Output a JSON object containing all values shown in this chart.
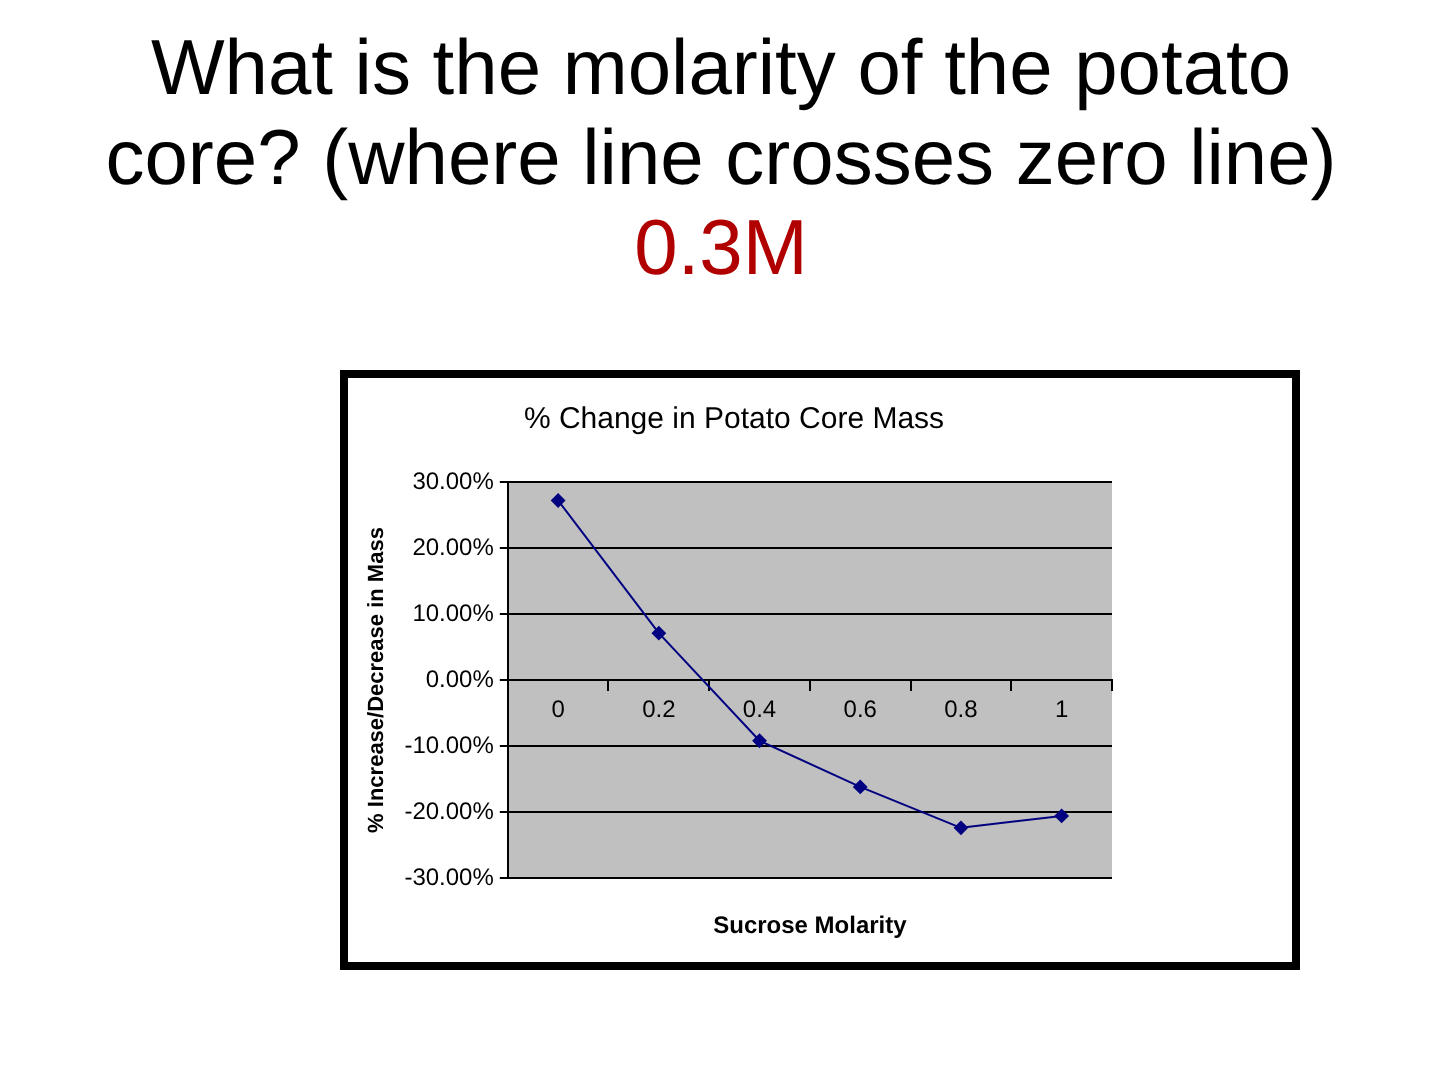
{
  "chart_data": {
    "type": "line",
    "title": "What is the molarity of the potato core? (where line crosses zero line)",
    "annotations": [
      "0.3M"
    ],
    "subtitle": "% Change in Potato Core Mass",
    "xlabel": "Sucrose Molarity",
    "ylabel": "% Increase/Decrease in Mass",
    "categories": [
      "0",
      "0.2",
      "0.4",
      "0.6",
      "0.8",
      "1"
    ],
    "series": [
      {
        "color": "#000080",
        "values": [
          27.2,
          7.1,
          -9.2,
          -16.2,
          -22.4,
          -20.6
        ]
      }
    ],
    "ylim": [
      -30,
      30
    ],
    "yticks": [
      {
        "value": -30,
        "label": "-30.00%"
      },
      {
        "value": -20,
        "label": "-20.00%"
      },
      {
        "value": -10,
        "label": "-10.00%"
      },
      {
        "value": 0,
        "label": "0.00%"
      },
      {
        "value": 10,
        "label": "10.00%"
      },
      {
        "value": 20,
        "label": "20.00%"
      },
      {
        "value": 30,
        "label": "30.00%"
      }
    ],
    "grid": "y",
    "legend": false,
    "marker": "diamond",
    "line_style": "solid"
  }
}
